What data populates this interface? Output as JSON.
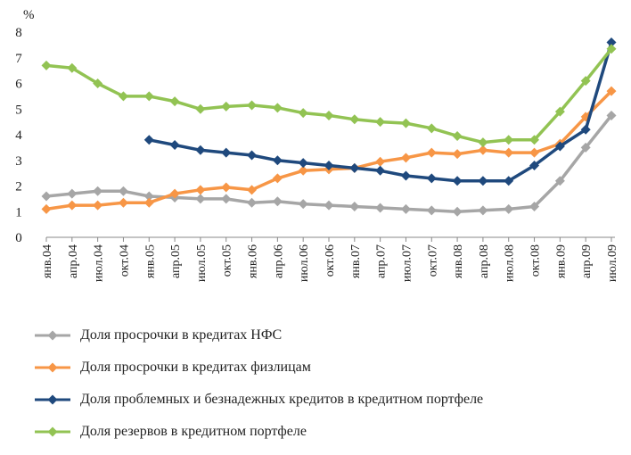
{
  "chart_data": {
    "type": "line",
    "ylabel": "%",
    "ylim": [
      0,
      8
    ],
    "yticks": [
      "0",
      "1",
      "2",
      "3",
      "4",
      "5",
      "6",
      "7",
      "8"
    ],
    "categories": [
      "янв.04",
      "апр.04",
      "июл.04",
      "окт.04",
      "янв.05",
      "апр.05",
      "июл.05",
      "окт.05",
      "янв.06",
      "апр.06",
      "июл.06",
      "окт.06",
      "янв.07",
      "апр.07",
      "июл.07",
      "окт.07",
      "янв.08",
      "апр.08",
      "июл.08",
      "окт.08",
      "янв.09",
      "апр.09",
      "июл.09"
    ],
    "series": [
      {
        "name": "Доля просрочки в кредитах НФС",
        "color": "#a6a6a6",
        "values": [
          1.6,
          1.7,
          1.8,
          1.8,
          1.6,
          1.55,
          1.5,
          1.5,
          1.35,
          1.4,
          1.3,
          1.25,
          1.2,
          1.15,
          1.1,
          1.05,
          1.0,
          1.05,
          1.1,
          1.2,
          2.2,
          3.5,
          4.75
        ]
      },
      {
        "name": "Доля просрочки в кредитах физлицам",
        "color": "#f79646",
        "values": [
          1.1,
          1.25,
          1.25,
          1.35,
          1.35,
          1.7,
          1.85,
          1.95,
          1.85,
          2.3,
          2.6,
          2.65,
          2.7,
          2.95,
          3.1,
          3.3,
          3.25,
          3.4,
          3.3,
          3.3,
          3.65,
          4.7,
          5.7
        ]
      },
      {
        "name": "Доля проблемных и безнадежных кредитов в кредитном портфеле",
        "color": "#1f497d",
        "values": [
          null,
          null,
          null,
          null,
          3.8,
          3.6,
          3.4,
          3.3,
          3.2,
          3.0,
          2.9,
          2.8,
          2.7,
          2.6,
          2.4,
          2.3,
          2.2,
          2.2,
          2.2,
          2.8,
          3.55,
          4.2,
          7.6
        ]
      },
      {
        "name": "Доля резервов в кредитном портфеле",
        "color": "#92c353",
        "values": [
          6.7,
          6.6,
          6.0,
          5.5,
          5.5,
          5.3,
          5.0,
          5.1,
          5.15,
          5.05,
          4.85,
          4.75,
          4.6,
          4.5,
          4.45,
          4.25,
          3.95,
          3.7,
          3.8,
          3.8,
          4.9,
          6.1,
          7.35
        ]
      }
    ]
  }
}
